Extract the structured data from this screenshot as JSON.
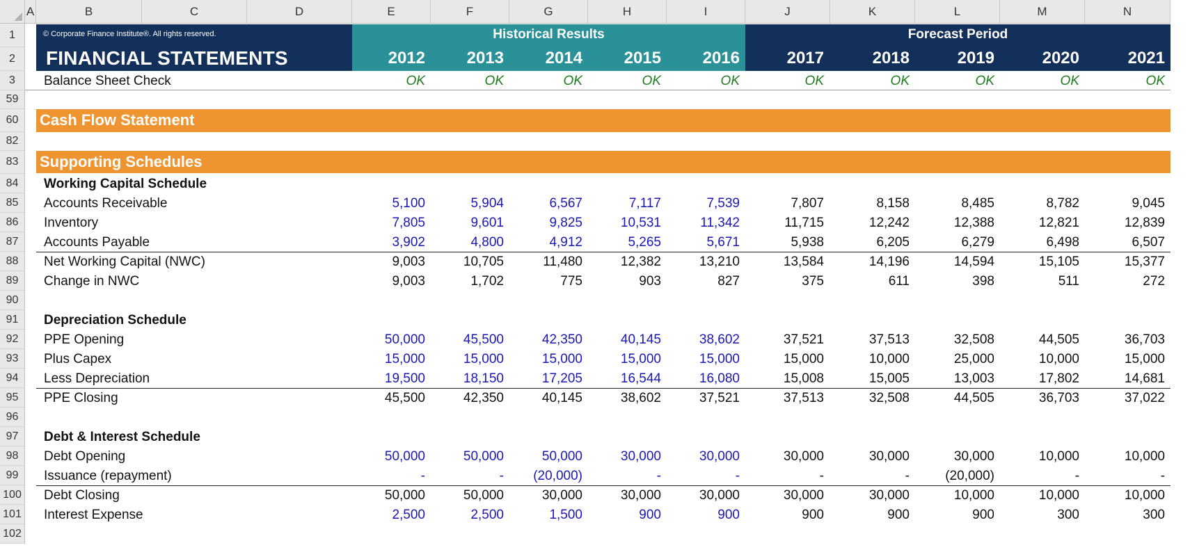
{
  "columns": [
    "A",
    "B",
    "C",
    "D",
    "E",
    "F",
    "G",
    "H",
    "I",
    "J",
    "K",
    "L",
    "M",
    "N"
  ],
  "rows": [
    "1",
    "2",
    "3",
    "59",
    "60",
    "82",
    "83",
    "84",
    "85",
    "86",
    "87",
    "88",
    "89",
    "90",
    "91",
    "92",
    "93",
    "94",
    "95",
    "96",
    "97",
    "98",
    "99",
    "100",
    "101",
    "102"
  ],
  "header": {
    "copyright": "© Corporate Finance Institute®. All rights reserved.",
    "title": "FINANCIAL STATEMENTS",
    "historical_label": "Historical Results",
    "forecast_label": "Forecast Period",
    "years": [
      "2012",
      "2013",
      "2014",
      "2015",
      "2016",
      "2017",
      "2018",
      "2019",
      "2020",
      "2021"
    ]
  },
  "balance_check": {
    "label": "Balance Sheet Check",
    "values": [
      "OK",
      "OK",
      "OK",
      "OK",
      "OK",
      "OK",
      "OK",
      "OK",
      "OK",
      "OK"
    ]
  },
  "sections": {
    "cash_flow": "Cash Flow Statement",
    "supporting": "Supporting Schedules"
  },
  "schedules": {
    "working_capital": {
      "title": "Working Capital Schedule",
      "rows": [
        {
          "label": "Accounts Receivable",
          "values": [
            "5,100",
            "5,904",
            "6,567",
            "7,117",
            "7,539",
            "7,807",
            "8,158",
            "8,485",
            "8,782",
            "9,045"
          ]
        },
        {
          "label": "Inventory",
          "values": [
            "7,805",
            "9,601",
            "9,825",
            "10,531",
            "11,342",
            "11,715",
            "12,242",
            "12,388",
            "12,821",
            "12,839"
          ]
        },
        {
          "label": "Accounts Payable",
          "values": [
            "3,902",
            "4,800",
            "4,912",
            "5,265",
            "5,671",
            "5,938",
            "6,205",
            "6,279",
            "6,498",
            "6,507"
          ]
        },
        {
          "label": "Net Working Capital (NWC)",
          "values": [
            "9,003",
            "10,705",
            "11,480",
            "12,382",
            "13,210",
            "13,584",
            "14,196",
            "14,594",
            "15,105",
            "15,377"
          ]
        },
        {
          "label": "Change in NWC",
          "values": [
            "9,003",
            "1,702",
            "775",
            "903",
            "827",
            "375",
            "611",
            "398",
            "511",
            "272"
          ]
        }
      ]
    },
    "depreciation": {
      "title": "Depreciation Schedule",
      "rows": [
        {
          "label": "PPE Opening",
          "values": [
            "50,000",
            "45,500",
            "42,350",
            "40,145",
            "38,602",
            "37,521",
            "37,513",
            "32,508",
            "44,505",
            "36,703"
          ]
        },
        {
          "label": "Plus Capex",
          "values": [
            "15,000",
            "15,000",
            "15,000",
            "15,000",
            "15,000",
            "15,000",
            "10,000",
            "25,000",
            "10,000",
            "15,000"
          ]
        },
        {
          "label": "Less Depreciation",
          "values": [
            "19,500",
            "18,150",
            "17,205",
            "16,544",
            "16,080",
            "15,008",
            "15,005",
            "13,003",
            "17,802",
            "14,681"
          ]
        },
        {
          "label": "PPE Closing",
          "values": [
            "45,500",
            "42,350",
            "40,145",
            "38,602",
            "37,521",
            "37,513",
            "32,508",
            "44,505",
            "36,703",
            "37,022"
          ]
        }
      ]
    },
    "debt": {
      "title": "Debt & Interest Schedule",
      "rows": [
        {
          "label": "Debt Opening",
          "values": [
            "50,000",
            "50,000",
            "50,000",
            "30,000",
            "30,000",
            "30,000",
            "30,000",
            "30,000",
            "10,000",
            "10,000"
          ]
        },
        {
          "label": "Issuance (repayment)",
          "values": [
            "-",
            "-",
            "(20,000)",
            "-",
            "-",
            "-",
            "-",
            "(20,000)",
            "-",
            "-"
          ]
        },
        {
          "label": "Debt Closing",
          "values": [
            "50,000",
            "50,000",
            "30,000",
            "30,000",
            "30,000",
            "30,000",
            "30,000",
            "10,000",
            "10,000",
            "10,000"
          ]
        },
        {
          "label": "Interest Expense",
          "values": [
            "2,500",
            "2,500",
            "1,500",
            "900",
            "900",
            "900",
            "900",
            "900",
            "300",
            "300"
          ]
        }
      ]
    }
  },
  "colors": {
    "navy": "#13305a",
    "teal": "#2a9199",
    "orange": "#ee9431",
    "input_blue": "#1a17b5",
    "ok_green": "#1e7b1e"
  }
}
